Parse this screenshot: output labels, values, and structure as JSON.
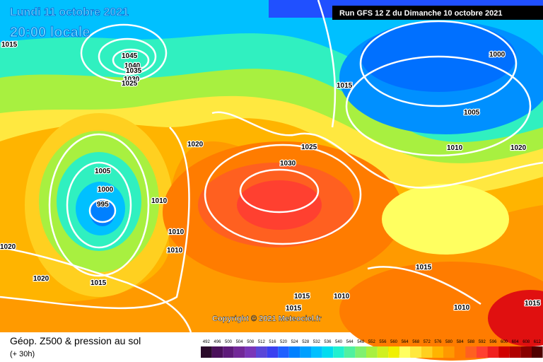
{
  "header": {
    "date": "Lundi 11 octobre 2021",
    "time": "20:00 locale",
    "run": "Run GFS 12 Z du Dimanche 10 octobre 2021"
  },
  "copyright": "Copyright © 2021 Meteociel.fr",
  "footer": {
    "title": "Géop. Z500 & pression au sol",
    "lead": "(+ 30h)"
  },
  "scale": {
    "labels": [
      "492",
      "496",
      "500",
      "504",
      "508",
      "512",
      "516",
      "520",
      "524",
      "528",
      "532",
      "536",
      "540",
      "544",
      "548",
      "552",
      "556",
      "560",
      "564",
      "568",
      "572",
      "576",
      "580",
      "584",
      "588",
      "592",
      "596",
      "600",
      "604",
      "608",
      "612"
    ],
    "colors": [
      "#2a0a2a",
      "#4a105a",
      "#5e1a7a",
      "#722898",
      "#7a36b8",
      "#5a46d8",
      "#3a40f0",
      "#2060ff",
      "#0080ff",
      "#00a0ff",
      "#00c0ff",
      "#00dcf0",
      "#20f0d0",
      "#50f0a0",
      "#80f070",
      "#a8f040",
      "#d0f020",
      "#f0f000",
      "#ffff60",
      "#ffe840",
      "#ffd020",
      "#ffb400",
      "#ff9800",
      "#ff7c00",
      "#ff6020",
      "#ff4030",
      "#f02020",
      "#d00000",
      "#b00000",
      "#880000",
      "#500000"
    ]
  },
  "isobars": [
    "1015",
    "1045",
    "1040",
    "1035",
    "1030",
    "1025",
    "1015",
    "1000",
    "1005",
    "1010",
    "1020",
    "1025",
    "1030",
    "1020",
    "1005",
    "1000",
    "995",
    "1010",
    "1010",
    "1010",
    "1020",
    "1020",
    "1015",
    "1015",
    "1015",
    "1010",
    "1015",
    "1010",
    "1015"
  ]
}
